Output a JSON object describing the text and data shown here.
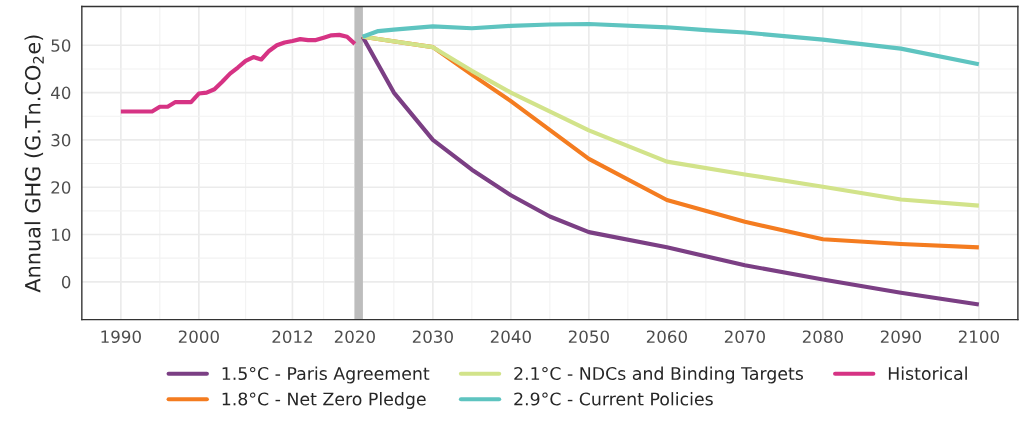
{
  "chart_data": {
    "type": "line",
    "ylabel": "Annual GHG (G.Tn.CO$_{2}$e)",
    "xlim": [
      1985,
      2105
    ],
    "xticks": [
      1990,
      2000,
      2012,
      2020,
      2030,
      2040,
      2050,
      2060,
      2070,
      2080,
      2090,
      2100
    ],
    "ylim": [
      -8,
      58.2
    ],
    "yticks": [
      0,
      10,
      20,
      30,
      40,
      50
    ],
    "grid": true,
    "legend": "bottom",
    "line_style": "solid",
    "marker": "none",
    "ref_lines": [
      {
        "axis": "x",
        "value": 2020.5,
        "color": "#bdbdbd"
      }
    ],
    "series": [
      {
        "name": "1.5°C - Paris Agreement",
        "color": "#7b3f84",
        "x": [
          2021,
          2025,
          2030,
          2035,
          2040,
          2045,
          2050,
          2060,
          2070,
          2080,
          2090,
          2100
        ],
        "values": [
          51.8,
          40,
          30,
          23.7,
          18.3,
          13.8,
          10.5,
          7.3,
          3.5,
          0.5,
          -2.3,
          -4.8
        ]
      },
      {
        "name": "1.8°C - Net Zero Pledge",
        "color": "#f47c20",
        "x": [
          2021,
          2030,
          2035,
          2040,
          2050,
          2060,
          2070,
          2080,
          2090,
          2100
        ],
        "values": [
          51.8,
          49.6,
          43.8,
          38.2,
          26,
          17.3,
          12.7,
          9,
          8,
          7.3
        ]
      },
      {
        "name": "2.1°C - NDCs and Binding Targets",
        "color": "#d2e38a",
        "x": [
          2021,
          2030,
          2035,
          2040,
          2050,
          2060,
          2070,
          2080,
          2090,
          2100
        ],
        "values": [
          51.8,
          49.6,
          44.6,
          40,
          32,
          25.4,
          22.7,
          20.1,
          17.4,
          16.1
        ]
      },
      {
        "name": "2.9°C - Current Policies",
        "color": "#5ec4c0",
        "x": [
          2021,
          2023,
          2025,
          2030,
          2035,
          2040,
          2045,
          2050,
          2060,
          2065,
          2070,
          2080,
          2090,
          2100
        ],
        "values": [
          51.8,
          53,
          53.3,
          54,
          53.6,
          54.1,
          54.4,
          54.5,
          53.8,
          53.2,
          52.7,
          51.2,
          49.3,
          46
        ]
      },
      {
        "name": "Historical",
        "color": "#d63384",
        "x": [
          1990,
          1991,
          1992,
          1993,
          1994,
          1995,
          1996,
          1997,
          1998,
          1999,
          2000,
          2001,
          2002,
          2003,
          2004,
          2005,
          2006,
          2007,
          2008,
          2009,
          2010,
          2011,
          2012,
          2013,
          2014,
          2015,
          2016,
          2017,
          2018,
          2019,
          2020
        ],
        "values": [
          36,
          36,
          36,
          36,
          36,
          37,
          37,
          38,
          38,
          38,
          39.8,
          40,
          40.7,
          42.3,
          44,
          45.3,
          46.7,
          47.5,
          47,
          48.8,
          50,
          50.6,
          50.9,
          51.3,
          51.1,
          51.1,
          51.6,
          52.1,
          52.2,
          51.8,
          50.3
        ]
      }
    ]
  }
}
